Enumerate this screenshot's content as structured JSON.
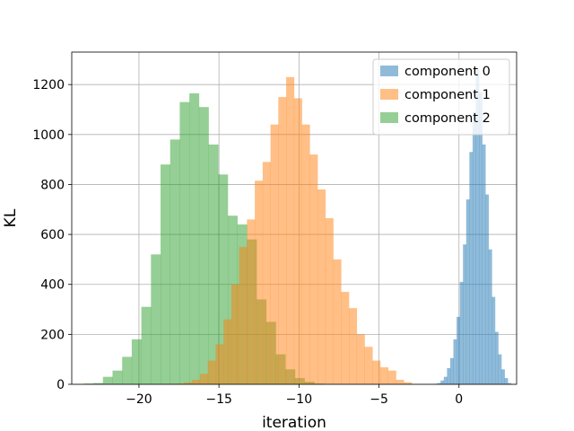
{
  "chart_data": {
    "type": "histogram",
    "title": "",
    "xlabel": "iteration",
    "ylabel": "KL",
    "xlim": [
      -24.2,
      3.6
    ],
    "ylim": [
      0,
      1330
    ],
    "xticks": [
      -20,
      -15,
      -10,
      -5,
      0
    ],
    "xtick_labels": [
      "−20",
      "−15",
      "−10",
      "−5",
      "0"
    ],
    "yticks": [
      0,
      200,
      400,
      600,
      800,
      1000,
      1200
    ],
    "grid": true,
    "legend_position": "top-right",
    "bar_alpha": 0.5,
    "series": [
      {
        "name": "component 2",
        "color": "#2ca02c",
        "bin_start": -23.45,
        "bin_width": 0.6,
        "values": [
          3,
          5,
          30,
          55,
          110,
          180,
          310,
          520,
          880,
          980,
          1130,
          1165,
          1110,
          960,
          840,
          675,
          640,
          580,
          340,
          250,
          120,
          60,
          25,
          10,
          3
        ]
      },
      {
        "name": "component 1",
        "color": "#ff7f0e",
        "bin_start": -18.15,
        "bin_width": 0.49,
        "values": [
          2,
          3,
          8,
          18,
          42,
          95,
          160,
          260,
          400,
          550,
          660,
          815,
          890,
          1040,
          1150,
          1230,
          1145,
          1040,
          920,
          780,
          665,
          500,
          370,
          305,
          200,
          150,
          95,
          68,
          55,
          18,
          8
        ]
      },
      {
        "name": "component 0",
        "color": "#1f77b4",
        "bin_start": -1.55,
        "bin_width": 0.2,
        "values": [
          2,
          5,
          15,
          30,
          65,
          105,
          180,
          270,
          410,
          560,
          740,
          930,
          1090,
          1260,
          1170,
          960,
          760,
          540,
          350,
          210,
          120,
          60,
          25,
          5
        ]
      }
    ],
    "legend": [
      {
        "label": "component 0",
        "color": "#1f77b4"
      },
      {
        "label": "component 1",
        "color": "#ff7f0e"
      },
      {
        "label": "component 2",
        "color": "#2ca02c"
      }
    ]
  }
}
